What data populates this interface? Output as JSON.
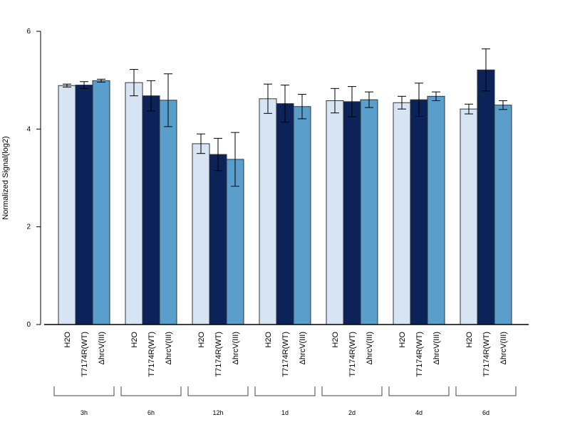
{
  "chart_data": {
    "type": "bar",
    "title": "",
    "xlabel": "",
    "ylabel": "Normalized Signal(log2)",
    "ylim": [
      0,
      6
    ],
    "yticks": [
      0,
      2,
      4,
      6
    ],
    "grid": false,
    "legend": "none",
    "groups": [
      "3h",
      "6h",
      "12h",
      "1d",
      "2d",
      "4d",
      "6d"
    ],
    "series": [
      {
        "label": "H2O",
        "color": "#d6e4f4",
        "values": [
          4.89,
          4.95,
          3.7,
          4.62,
          4.58,
          4.54,
          4.41
        ],
        "error": [
          0.03,
          0.27,
          0.2,
          0.3,
          0.25,
          0.13,
          0.1
        ]
      },
      {
        "label": "T7174R(WT)",
        "color": "#0b2358",
        "values": [
          4.9,
          4.68,
          3.48,
          4.52,
          4.56,
          4.6,
          5.21
        ],
        "error": [
          0.07,
          0.31,
          0.33,
          0.38,
          0.31,
          0.34,
          0.43
        ]
      },
      {
        "label": "ΔhrcV(III)",
        "color": "#5a9ecc",
        "values": [
          4.99,
          4.59,
          3.38,
          4.46,
          4.6,
          4.67,
          4.49
        ],
        "error": [
          0.03,
          0.54,
          0.55,
          0.25,
          0.16,
          0.09,
          0.09
        ]
      }
    ]
  }
}
